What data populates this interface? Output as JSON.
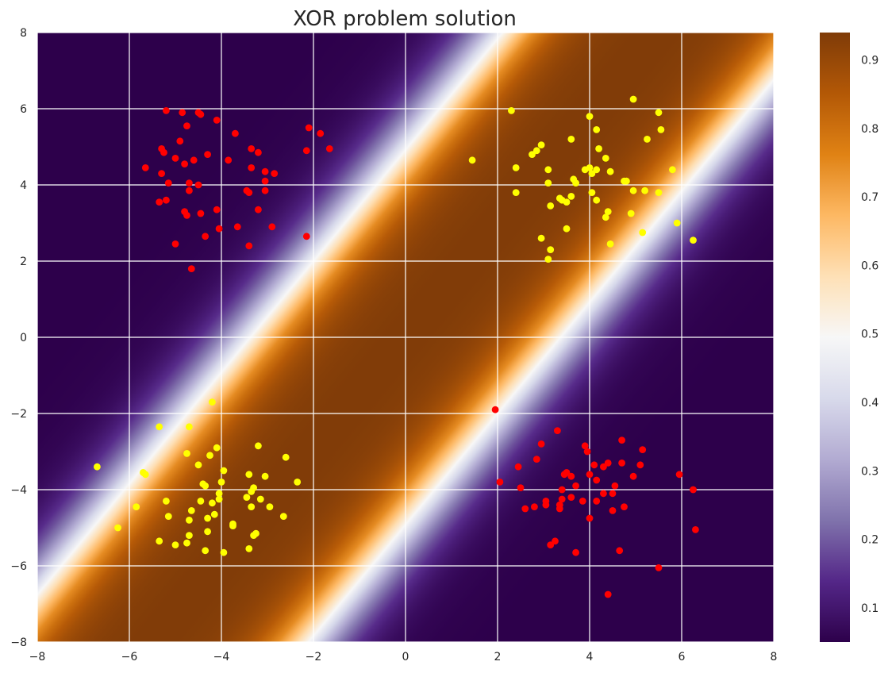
{
  "chart_data": {
    "type": "scatter",
    "title": "XOR problem solution",
    "xlabel": "",
    "ylabel": "",
    "xlim": [
      -8,
      8
    ],
    "ylim": [
      -8,
      8
    ],
    "x_ticks": [
      "−8",
      "−6",
      "−4",
      "−2",
      "0",
      "2",
      "4",
      "6",
      "8"
    ],
    "y_ticks": [
      "8",
      "6",
      "4",
      "2",
      "0",
      "−2",
      "−4",
      "−6",
      "−8"
    ],
    "grid": true,
    "background": {
      "type": "heatmap",
      "colormap": "PuOr_r",
      "description": "predicted probability; high (orange) band between the lines y = x + 4 and y = x − 4, low (purple) outside",
      "band": {
        "center_offsets": [
          4,
          -4
        ],
        "min_value": 0.05,
        "max_value": 0.94
      }
    },
    "colorbar": {
      "range": [
        0.05,
        0.94
      ],
      "tick_values": [
        0.1,
        0.2,
        0.3,
        0.4,
        0.5,
        0.6,
        0.7,
        0.8,
        0.9
      ],
      "tick_labels": [
        "0.1",
        "0.2",
        "0.3",
        "0.4",
        "0.5",
        "0.6",
        "0.7",
        "0.8",
        "0.9"
      ]
    },
    "colors": {
      "class_red": "#ff0000",
      "class_yellow": "#ffff00",
      "grid": "#ffffff",
      "text": "#262626"
    },
    "series": [
      {
        "name": "red",
        "color": "#ff0000",
        "points": [
          [
            -5.2,
            5.95
          ],
          [
            -4.85,
            5.9
          ],
          [
            -4.5,
            5.9
          ],
          [
            -4.45,
            5.85
          ],
          [
            -4.1,
            5.7
          ],
          [
            -4.75,
            5.55
          ],
          [
            -3.7,
            5.35
          ],
          [
            -2.1,
            5.5
          ],
          [
            -1.85,
            5.35
          ],
          [
            -1.65,
            4.95
          ],
          [
            -2.15,
            4.9
          ],
          [
            -4.9,
            5.15
          ],
          [
            -5.3,
            4.95
          ],
          [
            -5.25,
            4.85
          ],
          [
            -4.3,
            4.8
          ],
          [
            -3.35,
            4.95
          ],
          [
            -3.2,
            4.85
          ],
          [
            -5.0,
            4.7
          ],
          [
            -4.6,
            4.65
          ],
          [
            -3.85,
            4.65
          ],
          [
            -4.8,
            4.55
          ],
          [
            -5.65,
            4.45
          ],
          [
            -3.35,
            4.45
          ],
          [
            -3.05,
            4.35
          ],
          [
            -2.85,
            4.3
          ],
          [
            -5.3,
            4.3
          ],
          [
            -3.05,
            4.1
          ],
          [
            -5.15,
            4.05
          ],
          [
            -4.7,
            4.05
          ],
          [
            -4.5,
            4.0
          ],
          [
            -4.7,
            3.85
          ],
          [
            -3.45,
            3.85
          ],
          [
            -3.4,
            3.8
          ],
          [
            -3.05,
            3.85
          ],
          [
            -5.35,
            3.55
          ],
          [
            -5.2,
            3.6
          ],
          [
            -4.8,
            3.3
          ],
          [
            -4.75,
            3.2
          ],
          [
            -4.45,
            3.25
          ],
          [
            -4.1,
            3.35
          ],
          [
            -3.2,
            3.35
          ],
          [
            -3.65,
            2.9
          ],
          [
            -2.9,
            2.9
          ],
          [
            -4.05,
            2.85
          ],
          [
            -4.35,
            2.65
          ],
          [
            -2.15,
            2.65
          ],
          [
            -5.0,
            2.45
          ],
          [
            -3.4,
            2.4
          ],
          [
            -4.65,
            1.8
          ],
          [
            1.95,
            -1.9
          ],
          [
            3.3,
            -2.45
          ],
          [
            4.7,
            -2.7
          ],
          [
            2.95,
            -2.8
          ],
          [
            5.15,
            -2.95
          ],
          [
            3.9,
            -2.85
          ],
          [
            3.95,
            -3.0
          ],
          [
            2.85,
            -3.2
          ],
          [
            4.1,
            -3.35
          ],
          [
            4.4,
            -3.3
          ],
          [
            4.7,
            -3.3
          ],
          [
            5.1,
            -3.35
          ],
          [
            2.45,
            -3.4
          ],
          [
            4.3,
            -3.4
          ],
          [
            3.5,
            -3.55
          ],
          [
            3.45,
            -3.6
          ],
          [
            3.6,
            -3.65
          ],
          [
            4.0,
            -3.6
          ],
          [
            4.95,
            -3.65
          ],
          [
            5.95,
            -3.6
          ],
          [
            4.15,
            -3.75
          ],
          [
            2.05,
            -3.8
          ],
          [
            3.7,
            -3.9
          ],
          [
            4.55,
            -3.9
          ],
          [
            2.5,
            -3.95
          ],
          [
            3.4,
            -4.0
          ],
          [
            6.25,
            -4.0
          ],
          [
            4.3,
            -4.1
          ],
          [
            4.5,
            -4.1
          ],
          [
            3.6,
            -4.2
          ],
          [
            3.05,
            -4.3
          ],
          [
            3.4,
            -4.25
          ],
          [
            3.85,
            -4.3
          ],
          [
            4.15,
            -4.3
          ],
          [
            3.05,
            -4.4
          ],
          [
            3.35,
            -4.4
          ],
          [
            2.8,
            -4.45
          ],
          [
            3.35,
            -4.5
          ],
          [
            4.75,
            -4.45
          ],
          [
            2.6,
            -4.5
          ],
          [
            4.5,
            -4.55
          ],
          [
            4.0,
            -4.75
          ],
          [
            6.3,
            -5.05
          ],
          [
            3.25,
            -5.35
          ],
          [
            3.15,
            -5.45
          ],
          [
            4.65,
            -5.6
          ],
          [
            3.7,
            -5.65
          ],
          [
            5.5,
            -6.05
          ],
          [
            4.4,
            -6.75
          ]
        ]
      },
      {
        "name": "yellow",
        "color": "#ffff00",
        "points": [
          [
            2.3,
            5.95
          ],
          [
            4.95,
            6.25
          ],
          [
            5.5,
            5.9
          ],
          [
            4.0,
            5.8
          ],
          [
            4.15,
            5.45
          ],
          [
            5.55,
            5.45
          ],
          [
            3.6,
            5.2
          ],
          [
            5.25,
            5.2
          ],
          [
            2.95,
            5.05
          ],
          [
            2.85,
            4.9
          ],
          [
            4.2,
            4.95
          ],
          [
            2.75,
            4.8
          ],
          [
            4.35,
            4.7
          ],
          [
            4.75,
            4.1
          ],
          [
            1.45,
            4.65
          ],
          [
            2.4,
            4.45
          ],
          [
            3.1,
            4.4
          ],
          [
            3.9,
            4.4
          ],
          [
            4.0,
            4.45
          ],
          [
            4.15,
            4.4
          ],
          [
            4.05,
            4.3
          ],
          [
            4.45,
            4.35
          ],
          [
            5.8,
            4.4
          ],
          [
            3.65,
            4.15
          ],
          [
            3.7,
            4.05
          ],
          [
            3.1,
            4.05
          ],
          [
            4.8,
            4.1
          ],
          [
            2.4,
            3.8
          ],
          [
            4.95,
            3.85
          ],
          [
            5.2,
            3.85
          ],
          [
            5.5,
            3.8
          ],
          [
            4.05,
            3.8
          ],
          [
            3.35,
            3.65
          ],
          [
            3.4,
            3.6
          ],
          [
            3.5,
            3.55
          ],
          [
            3.6,
            3.7
          ],
          [
            4.15,
            3.6
          ],
          [
            3.15,
            3.45
          ],
          [
            4.4,
            3.3
          ],
          [
            4.9,
            3.25
          ],
          [
            4.35,
            3.15
          ],
          [
            5.9,
            3.0
          ],
          [
            3.5,
            2.85
          ],
          [
            5.15,
            2.75
          ],
          [
            2.95,
            2.6
          ],
          [
            6.25,
            2.55
          ],
          [
            4.45,
            2.45
          ],
          [
            3.15,
            2.3
          ],
          [
            3.1,
            2.05
          ],
          [
            -4.2,
            -1.7
          ],
          [
            -5.35,
            -2.35
          ],
          [
            -4.7,
            -2.35
          ],
          [
            -3.2,
            -2.85
          ],
          [
            -4.1,
            -2.9
          ],
          [
            -4.75,
            -3.05
          ],
          [
            -4.25,
            -3.1
          ],
          [
            -2.6,
            -3.15
          ],
          [
            -6.7,
            -3.4
          ],
          [
            -4.5,
            -3.35
          ],
          [
            -3.95,
            -3.5
          ],
          [
            -5.7,
            -3.55
          ],
          [
            -5.65,
            -3.6
          ],
          [
            -3.4,
            -3.6
          ],
          [
            -3.05,
            -3.65
          ],
          [
            -4.4,
            -3.85
          ],
          [
            -4.35,
            -3.9
          ],
          [
            -4.0,
            -3.8
          ],
          [
            -2.35,
            -3.8
          ],
          [
            -3.3,
            -3.95
          ],
          [
            -3.35,
            -4.05
          ],
          [
            -4.05,
            -4.1
          ],
          [
            -3.45,
            -4.2
          ],
          [
            -3.15,
            -4.25
          ],
          [
            -4.05,
            -4.25
          ],
          [
            -4.45,
            -4.3
          ],
          [
            -4.2,
            -4.35
          ],
          [
            -5.2,
            -4.3
          ],
          [
            -5.85,
            -4.45
          ],
          [
            -3.35,
            -4.45
          ],
          [
            -2.95,
            -4.45
          ],
          [
            -4.65,
            -4.55
          ],
          [
            -4.15,
            -4.65
          ],
          [
            -2.65,
            -4.7
          ],
          [
            -5.15,
            -4.7
          ],
          [
            -4.3,
            -4.75
          ],
          [
            -4.7,
            -4.8
          ],
          [
            -3.75,
            -4.9
          ],
          [
            -3.75,
            -4.95
          ],
          [
            -6.25,
            -5.0
          ],
          [
            -4.3,
            -5.1
          ],
          [
            -3.25,
            -5.15
          ],
          [
            -4.7,
            -5.2
          ],
          [
            -3.3,
            -5.2
          ],
          [
            -5.35,
            -5.35
          ],
          [
            -4.75,
            -5.4
          ],
          [
            -5.0,
            -5.45
          ],
          [
            -3.4,
            -5.55
          ],
          [
            -4.35,
            -5.6
          ],
          [
            -3.95,
            -5.65
          ]
        ]
      }
    ]
  }
}
